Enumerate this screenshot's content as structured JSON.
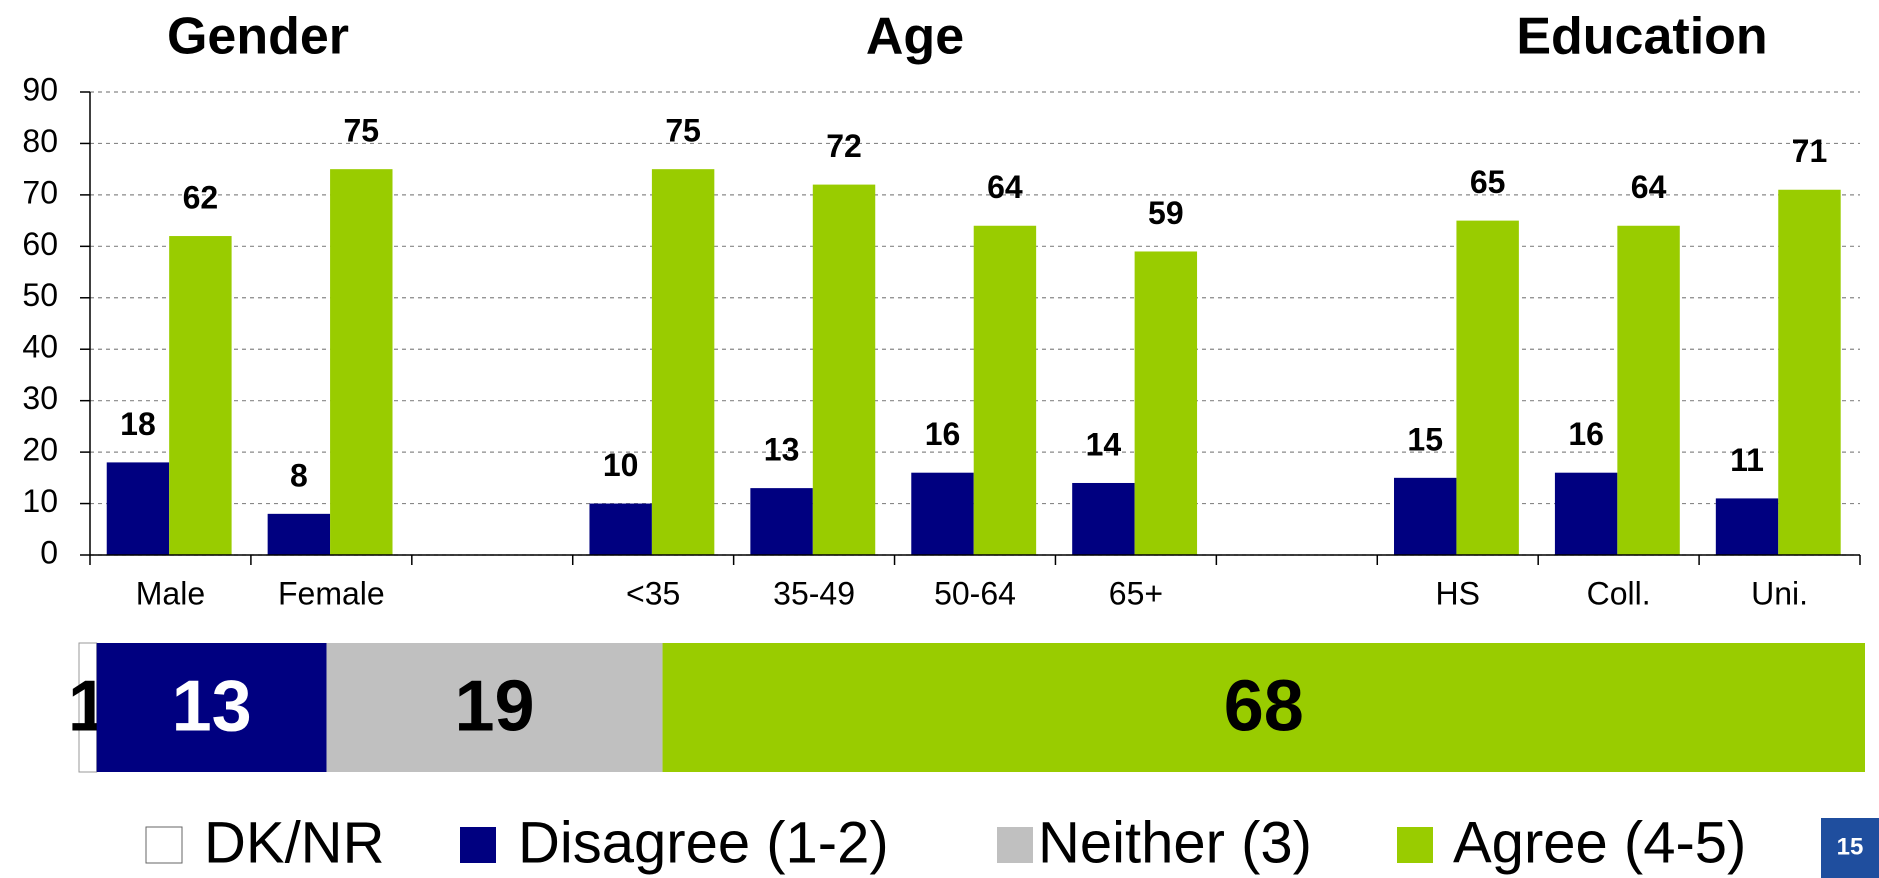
{
  "chart_data": [
    {
      "type": "bar",
      "annotations": [
        "Gender",
        "Age",
        "Education"
      ],
      "categories": [
        "Male",
        "Female",
        null,
        "<35",
        "35-49",
        "50-64",
        "65+",
        null,
        "HS",
        "Coll.",
        "Uni."
      ],
      "series": [
        {
          "color": "#000080",
          "values": [
            18,
            8,
            null,
            10,
            13,
            16,
            14,
            null,
            15,
            16,
            11
          ]
        },
        {
          "color": "#99cc00",
          "values": [
            62,
            75,
            null,
            75,
            72,
            64,
            59,
            null,
            65,
            64,
            71
          ]
        }
      ],
      "ylim": [
        0,
        90
      ],
      "yticks": [
        0,
        10,
        20,
        30,
        40,
        50,
        60,
        70,
        80,
        90
      ],
      "grid": true
    },
    {
      "type": "stacked_barh",
      "series": [
        {
          "name": "DK/NR",
          "color": "#ffffff",
          "values": [
            1
          ]
        },
        {
          "name": "Disagree (1-2)",
          "color": "#000080",
          "values": [
            13
          ]
        },
        {
          "name": "Neither (3)",
          "color": "#c0c0c0",
          "values": [
            19
          ]
        },
        {
          "name": "Agree (4-5)",
          "color": "#99cc00",
          "values": [
            68
          ]
        }
      ],
      "legend": "bottom"
    }
  ],
  "page_number": "15"
}
